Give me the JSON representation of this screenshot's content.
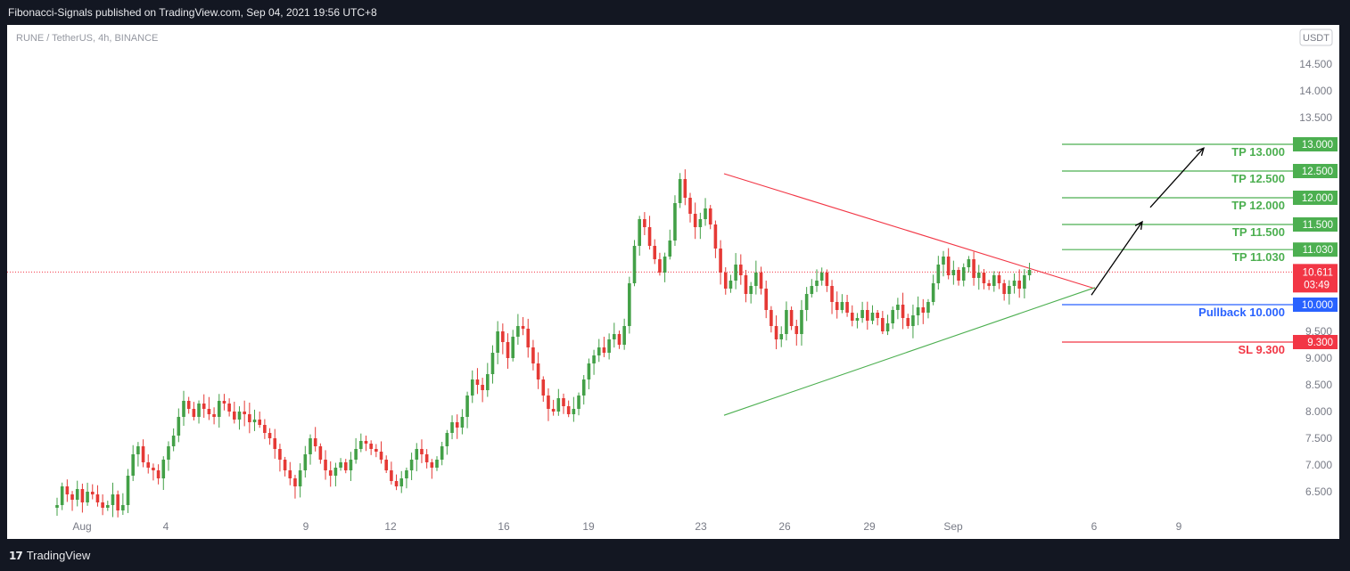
{
  "header": {
    "published": "Fibonacci-Signals published on TradingView.com, Sep 04, 2021 19:56 UTC+8"
  },
  "footer": {
    "brand": "TradingView"
  },
  "chart_data": {
    "type": "candlestick",
    "symbol_line": "RUNE / TetherUS, 4h, BINANCE",
    "currency_badge": "USDT",
    "ylim": [
      6.1,
      14.75
    ],
    "y_ticks": [
      "6.500",
      "7.000",
      "7.500",
      "8.000",
      "8.500",
      "9.000",
      "9.500",
      "10.000",
      "10.500",
      "11.000",
      "11.500",
      "12.000",
      "12.500",
      "13.000",
      "13.500",
      "14.000",
      "14.500"
    ],
    "x_ticks": [
      "Aug",
      "4",
      "9",
      "12",
      "16",
      "19",
      "23",
      "26",
      "29",
      "Sep",
      "6",
      "9"
    ],
    "last_price": {
      "value": 10.611,
      "label": "10.611",
      "countdown": "03:49"
    },
    "levels": [
      {
        "label": "TP 13.000",
        "price": 13.0,
        "badge": "13.000",
        "color": "#4caf50"
      },
      {
        "label": "TP 12.500",
        "price": 12.5,
        "badge": "12.500",
        "color": "#4caf50"
      },
      {
        "label": "TP 12.000",
        "price": 12.0,
        "badge": "12.000",
        "color": "#4caf50"
      },
      {
        "label": "TP 11.500",
        "price": 11.5,
        "badge": "11.500",
        "color": "#4caf50"
      },
      {
        "label": "TP 11.030",
        "price": 11.03,
        "badge": "11.030",
        "color": "#4caf50"
      },
      {
        "label": "Pullback 10.000",
        "price": 10.0,
        "badge": "10.000",
        "color": "#2962ff"
      },
      {
        "label": "SL 9.300",
        "price": 9.3,
        "badge": "9.300",
        "color": "#f23645"
      }
    ],
    "resistance_line": {
      "from": [
        "Aug 23",
        12.45
      ],
      "to": [
        "Sep 05",
        10.3
      ],
      "color": "#f23645"
    },
    "support_line": {
      "from": [
        "Aug 23",
        7.93
      ],
      "to": [
        "Sep 05",
        10.32
      ],
      "color": "#4caf50"
    },
    "projection_arrows": [
      {
        "from": 10.18,
        "to": 11.55
      },
      {
        "from": 11.82,
        "to": 12.93
      }
    ],
    "candle_shape": [
      6.25,
      6.6,
      6.45,
      6.35,
      6.55,
      6.3,
      6.5,
      6.45,
      6.3,
      6.2,
      6.25,
      6.45,
      6.15,
      6.25,
      6.8,
      7.2,
      7.35,
      7.05,
      6.95,
      6.9,
      6.75,
      7.1,
      7.35,
      7.55,
      7.9,
      8.2,
      8.05,
      7.9,
      8.15,
      8.05,
      7.95,
      7.9,
      8.2,
      8.15,
      8.0,
      7.85,
      8.0,
      7.95,
      7.8,
      7.85,
      7.75,
      7.6,
      7.5,
      7.3,
      7.1,
      6.9,
      6.75,
      6.6,
      6.9,
      7.2,
      7.5,
      7.35,
      7.1,
      6.9,
      6.8,
      6.95,
      7.05,
      6.9,
      7.1,
      7.3,
      7.45,
      7.4,
      7.3,
      7.25,
      7.1,
      6.9,
      6.7,
      6.6,
      6.75,
      6.9,
      7.1,
      7.3,
      7.2,
      7.05,
      6.95,
      7.1,
      7.35,
      7.6,
      7.8,
      7.7,
      7.9,
      8.3,
      8.6,
      8.5,
      8.4,
      8.7,
      9.1,
      9.5,
      9.3,
      9.0,
      9.4,
      9.6,
      9.55,
      9.2,
      8.9,
      8.6,
      8.3,
      8.05,
      8.0,
      8.25,
      8.1,
      7.95,
      8.05,
      8.3,
      8.6,
      8.9,
      9.05,
      9.2,
      9.1,
      9.35,
      9.45,
      9.25,
      9.6,
      10.4,
      11.1,
      11.6,
      11.45,
      11.1,
      10.85,
      10.6,
      10.9,
      11.2,
      11.9,
      12.35,
      12.0,
      11.7,
      11.45,
      11.6,
      11.8,
      11.5,
      11.05,
      10.6,
      10.3,
      10.45,
      10.75,
      10.55,
      10.2,
      10.35,
      10.6,
      10.3,
      9.9,
      9.6,
      9.35,
      9.45,
      9.9,
      9.6,
      9.45,
      9.9,
      10.2,
      10.35,
      10.45,
      10.6,
      10.35,
      10.05,
      9.9,
      10.05,
      9.85,
      9.7,
      9.75,
      9.9,
      9.7,
      9.85,
      9.75,
      9.5,
      9.65,
      9.9,
      10.0,
      9.75,
      9.6,
      9.8,
      9.95,
      9.85,
      10.05,
      10.4,
      10.75,
      10.9,
      10.55,
      10.65,
      10.45,
      10.7,
      10.85,
      10.5,
      10.6,
      10.4,
      10.35,
      10.55,
      10.4,
      10.2,
      10.35,
      10.45,
      10.3,
      10.55,
      10.65
    ]
  }
}
